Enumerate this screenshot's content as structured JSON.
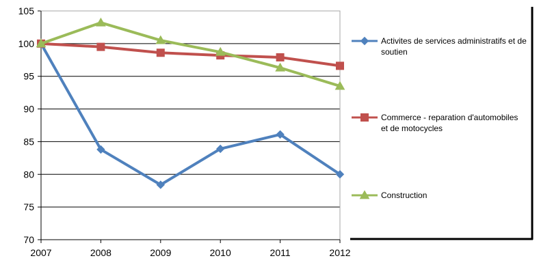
{
  "chart_data": {
    "type": "line",
    "title": "",
    "xlabel": "",
    "ylabel": "",
    "x": [
      "2007",
      "2008",
      "2009",
      "2010",
      "2011",
      "2012"
    ],
    "ylim": [
      70,
      105
    ],
    "yticks": [
      70,
      75,
      80,
      85,
      90,
      95,
      100,
      105
    ],
    "grid": "horizontal",
    "legend": "right",
    "series": [
      {
        "name_lines": [
          "Activites de services administratifs et de",
          "soutien"
        ],
        "color": "#4f81bd",
        "marker": "diamond",
        "values": [
          100.0,
          83.8,
          78.4,
          83.9,
          86.1,
          80.0
        ]
      },
      {
        "name_lines": [
          "Commerce -  reparation d'automobiles",
          "et de motocycles"
        ],
        "color": "#c0504d",
        "marker": "square",
        "values": [
          100.0,
          99.5,
          98.6,
          98.2,
          97.9,
          96.6
        ]
      },
      {
        "name_lines": [
          "Construction"
        ],
        "color": "#9bbb59",
        "marker": "triangle",
        "values": [
          100.0,
          103.2,
          100.5,
          98.7,
          96.3,
          93.5
        ]
      }
    ]
  }
}
